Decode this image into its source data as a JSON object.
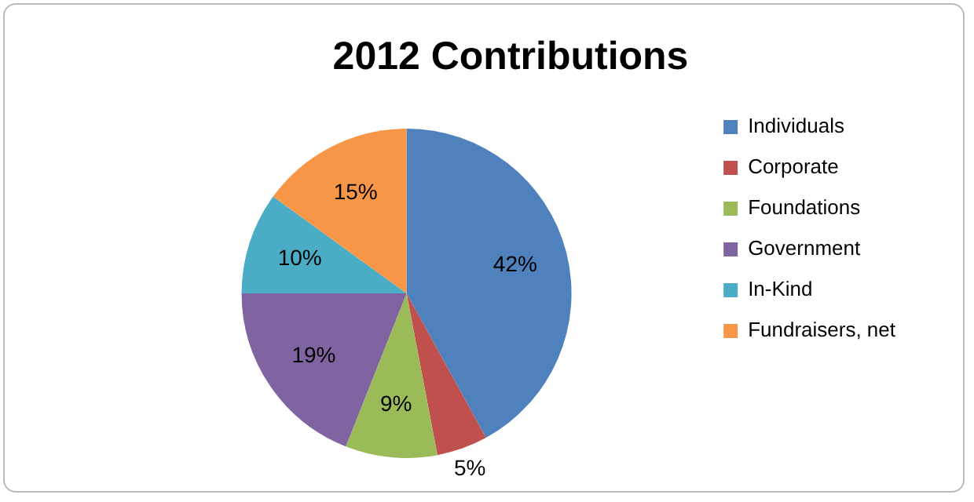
{
  "chart_data": {
    "type": "pie",
    "title": "2012 Contributions",
    "categories": [
      "Individuals",
      "Corporate",
      "Foundations",
      "Government",
      "In-Kind",
      "Fundraisers, net"
    ],
    "values": [
      42,
      5,
      9,
      19,
      10,
      15
    ],
    "colors": [
      "#4f81bd",
      "#c0504d",
      "#9bbb59",
      "#8064a2",
      "#4bacc6",
      "#f79646"
    ],
    "value_labels": [
      "42%",
      "5%",
      "9%",
      "19%",
      "10%",
      "15%"
    ],
    "legend": "right"
  }
}
